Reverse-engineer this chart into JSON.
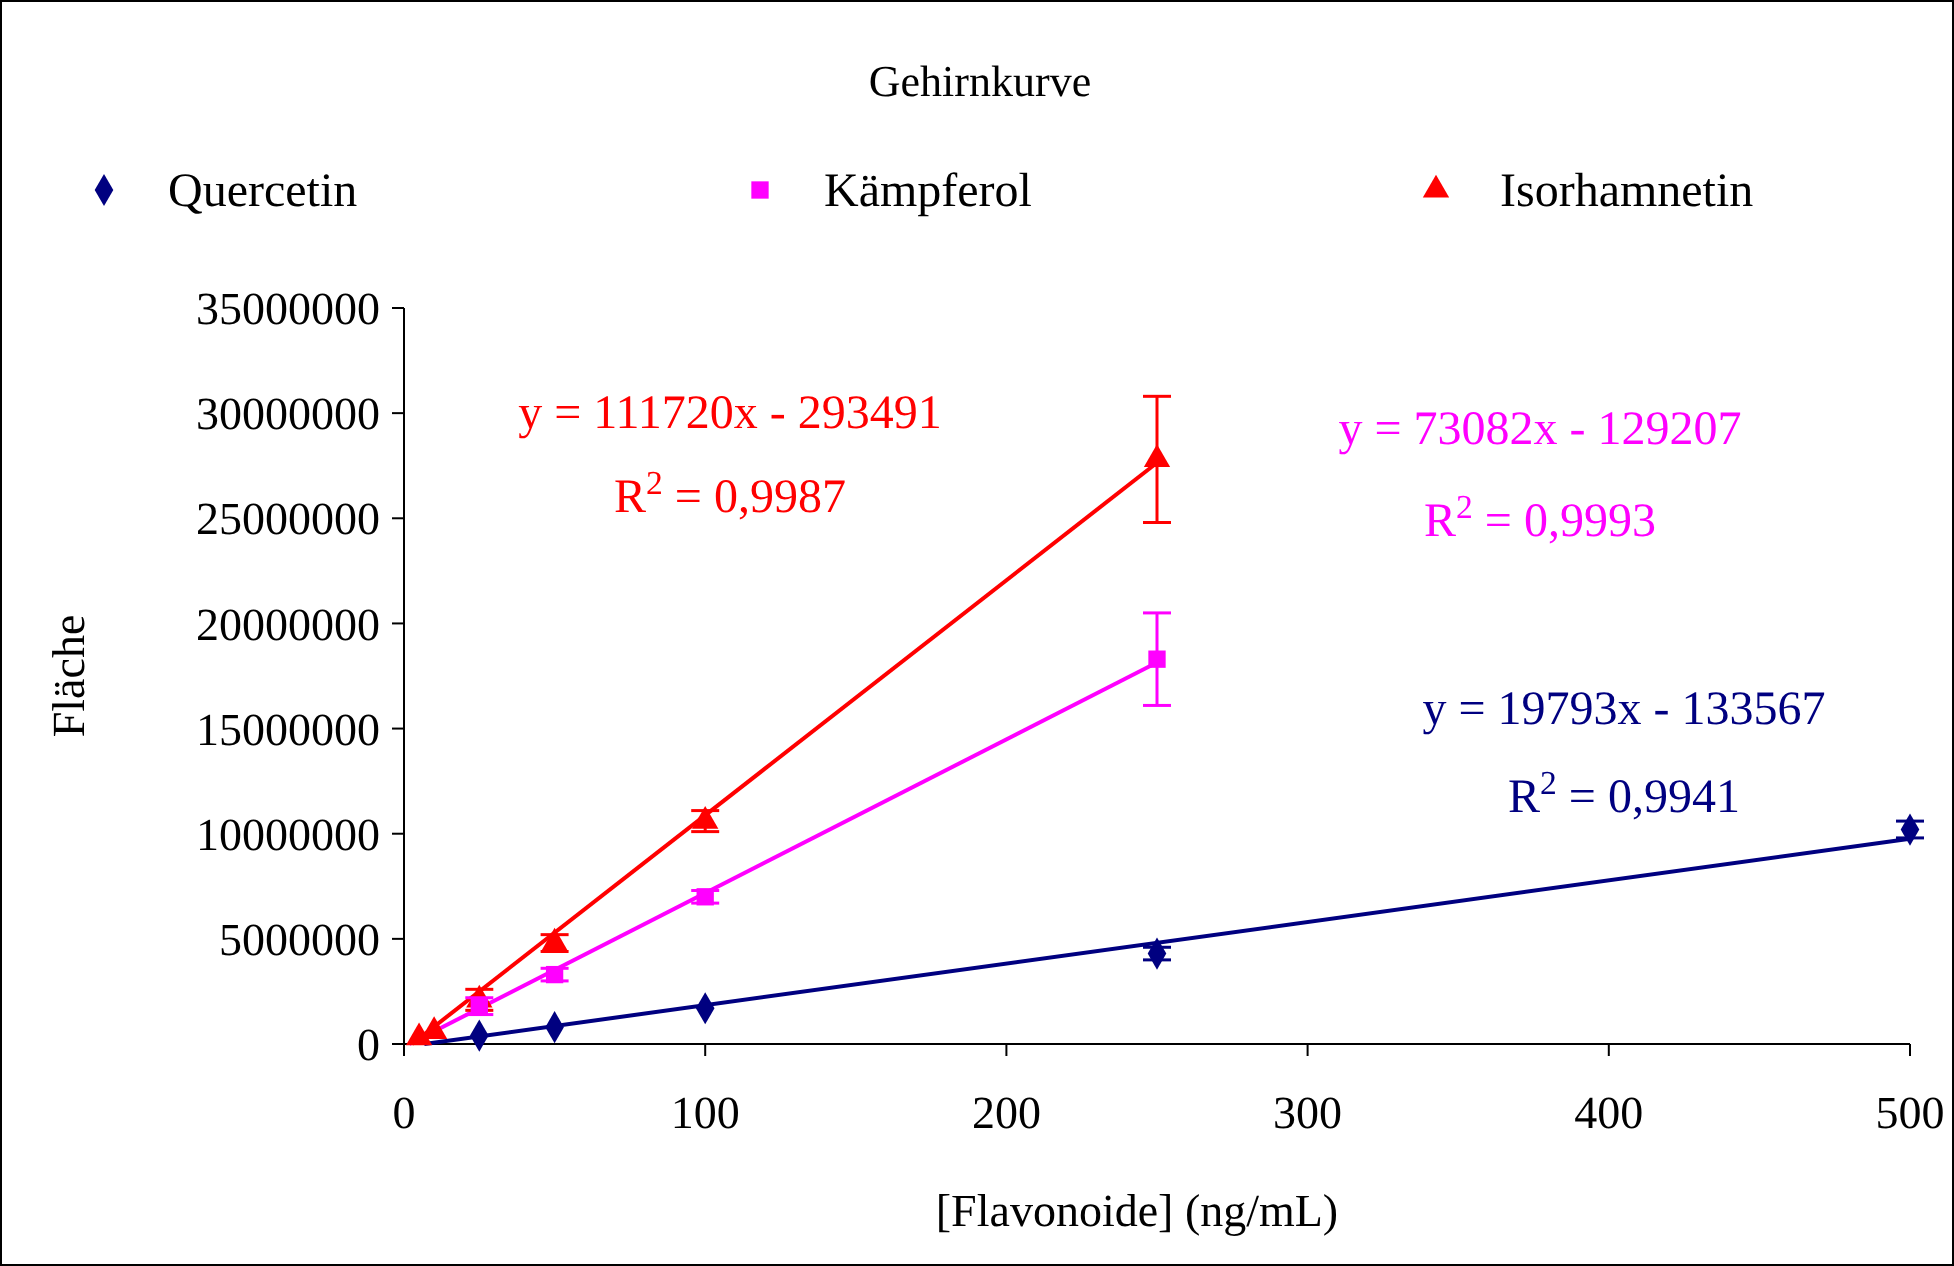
{
  "chart_data": {
    "type": "scatter",
    "title": "Gehirnkurve",
    "xlabel": "[Flavonoide] (ng/mL)",
    "ylabel": "Fläche",
    "xlim": [
      0,
      500
    ],
    "xticks": [
      0,
      100,
      200,
      300,
      400,
      500
    ],
    "ylim": [
      0,
      35000000
    ],
    "yticks": [
      0,
      5000000,
      10000000,
      15000000,
      20000000,
      25000000,
      30000000,
      35000000
    ],
    "grid": false,
    "legend": "top",
    "series": [
      {
        "name": "Quercetin",
        "color": "#000080",
        "marker": "diamond",
        "x": [
          25,
          50,
          100,
          250,
          500
        ],
        "values": [
          400000,
          800000,
          1700000,
          4300000,
          10200000
        ],
        "errors": [
          null,
          null,
          null,
          300000,
          400000
        ]
      },
      {
        "name": "Kämpferol",
        "color": "#ff00ff",
        "marker": "square",
        "x": [
          25,
          50,
          100,
          250
        ],
        "values": [
          1800000,
          3300000,
          7000000,
          18300000
        ],
        "errors": [
          400000,
          300000,
          300000,
          2200000
        ]
      },
      {
        "name": "Isorhamnetin",
        "color": "#ff0000",
        "marker": "triangle",
        "x": [
          5,
          10,
          25,
          50,
          100,
          250
        ],
        "values": [
          300000,
          600000,
          2100000,
          4800000,
          10600000,
          27800000
        ],
        "errors": [
          null,
          null,
          500000,
          400000,
          500000,
          3000000
        ]
      },
      {
        "type": "line",
        "color": "#000080",
        "x": [
          6.75,
          500
        ],
        "values": [
          0,
          9760000
        ]
      },
      {
        "type": "line",
        "color": "#ff00ff",
        "x": [
          1.77,
          250
        ],
        "values": [
          0,
          18140000
        ]
      },
      {
        "type": "line",
        "color": "#ff0000",
        "x": [
          2.63,
          250
        ],
        "values": [
          0,
          27640000
        ]
      }
    ],
    "annotations": [
      "y = 19793x - 133567",
      "R$^{2}$ = 0,9941",
      "y = 73082x - 129207",
      "R$^{2}$ = 0,9993",
      "y = 111720x - 293491",
      "R$^{2}$ = 0,9987"
    ]
  }
}
